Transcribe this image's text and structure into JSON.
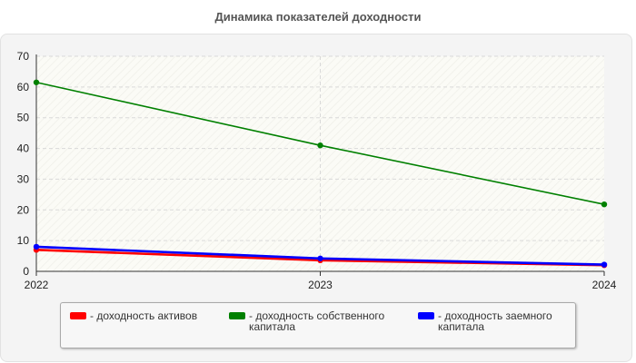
{
  "chart_data": {
    "type": "line",
    "title": "Динамика показателей доходности",
    "xlabel": "",
    "ylabel": "",
    "x": [
      "2022",
      "2023",
      "2024"
    ],
    "ylim": [
      0,
      70
    ],
    "yticks": [
      0,
      10,
      20,
      30,
      40,
      50,
      60,
      70
    ],
    "grid": true,
    "legend_position": "bottom",
    "series": [
      {
        "name": "- доходность активов",
        "color": "#ff0000",
        "values": [
          7,
          3.6,
          2
        ]
      },
      {
        "name": "- доходность собственного капитала",
        "color": "#008000",
        "values": [
          61.5,
          41,
          21.8
        ]
      },
      {
        "name": "- доходность заемного капитала",
        "color": "#0000ff",
        "values": [
          8,
          4.2,
          2.2
        ]
      }
    ]
  }
}
